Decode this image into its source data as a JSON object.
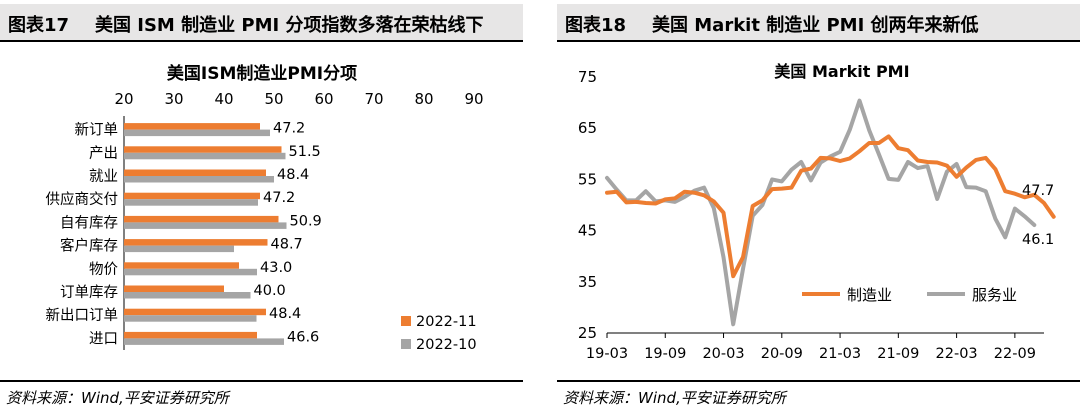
{
  "left": {
    "fig_num": "图表17",
    "header_title": "美国 ISM 制造业 PMI 分项指数多落在荣枯线下",
    "source": "资料来源：Wind,平安证券研究所"
  },
  "right": {
    "fig_num": "图表18",
    "header_title": "美国 Markit 制造业 PMI 创两年来新低",
    "source": "资料来源：Wind,平安证券研究所"
  },
  "colors": {
    "nov": "#ed7d31",
    "oct": "#a5a5a5"
  },
  "chart_data": [
    {
      "type": "bar",
      "orientation": "horizontal",
      "title": "美国ISM制造业PMI分项",
      "categories": [
        "新订单",
        "产出",
        "就业",
        "供应商交付",
        "自有库存",
        "客户库存",
        "物价",
        "订单库存",
        "新出口订单",
        "进口"
      ],
      "series": [
        {
          "name": "2022-11",
          "values": [
            47.2,
            51.5,
            48.4,
            47.2,
            50.9,
            48.7,
            43.0,
            40.0,
            48.4,
            46.6
          ],
          "labels": [
            "47.2",
            "51.5",
            "48.4",
            "47.2",
            "50.9",
            "48.7",
            "43.0",
            "40.0",
            "48.4",
            "46.6"
          ]
        },
        {
          "name": "2022-10",
          "values": [
            49.2,
            52.3,
            50.0,
            46.8,
            52.5,
            42.0,
            46.6,
            45.3,
            46.5,
            52.0
          ]
        }
      ],
      "xticks": [
        "20",
        "30",
        "40",
        "50",
        "60",
        "70",
        "80",
        "90"
      ],
      "xlim": [
        20,
        90
      ],
      "axis_position": "top",
      "legend": "bottom-right",
      "grid": false
    },
    {
      "type": "line",
      "title": "美国 Markit PMI",
      "x_start": "2019-03",
      "xticks": [
        "19-03",
        "19-09",
        "20-03",
        "20-09",
        "21-03",
        "21-09",
        "22-03",
        "22-09"
      ],
      "yticks": [
        "25",
        "35",
        "45",
        "55",
        "65",
        "75"
      ],
      "ylim": [
        25,
        75
      ],
      "legend": "lower-right-inside",
      "grid": false,
      "series": [
        {
          "name": "制造业",
          "color": "#ed7d31",
          "values": [
            52.4,
            52.6,
            50.5,
            50.6,
            50.4,
            50.3,
            51.1,
            51.3,
            52.6,
            52.4,
            51.9,
            50.7,
            48.5,
            36.1,
            39.8,
            49.8,
            50.9,
            53.1,
            53.2,
            53.4,
            56.7,
            57.1,
            59.2,
            59.1,
            58.6,
            59.1,
            60.5,
            62.1,
            62.1,
            63.4,
            61.1,
            60.7,
            58.7,
            58.4,
            58.3,
            57.7,
            55.5,
            57.3,
            58.8,
            59.2,
            57.0,
            52.7,
            52.2,
            51.5,
            52.0,
            50.4,
            47.7
          ],
          "end_label": "47.7"
        },
        {
          "name": "服务业",
          "color": "#a5a5a5",
          "values": [
            55.3,
            53.0,
            50.9,
            50.9,
            52.7,
            50.7,
            50.9,
            50.6,
            51.6,
            52.8,
            53.4,
            49.4,
            39.8,
            26.7,
            37.5,
            47.9,
            50.0,
            55.0,
            54.6,
            56.9,
            58.4,
            54.8,
            58.3,
            59.5,
            60.4,
            64.7,
            70.4,
            64.6,
            59.9,
            55.1,
            54.9,
            58.4,
            57.2,
            57.6,
            51.2,
            56.5,
            58.0,
            53.5,
            53.4,
            52.7,
            47.3,
            43.7,
            49.3,
            47.8,
            46.1
          ],
          "end_label": "46.1"
        }
      ]
    }
  ]
}
